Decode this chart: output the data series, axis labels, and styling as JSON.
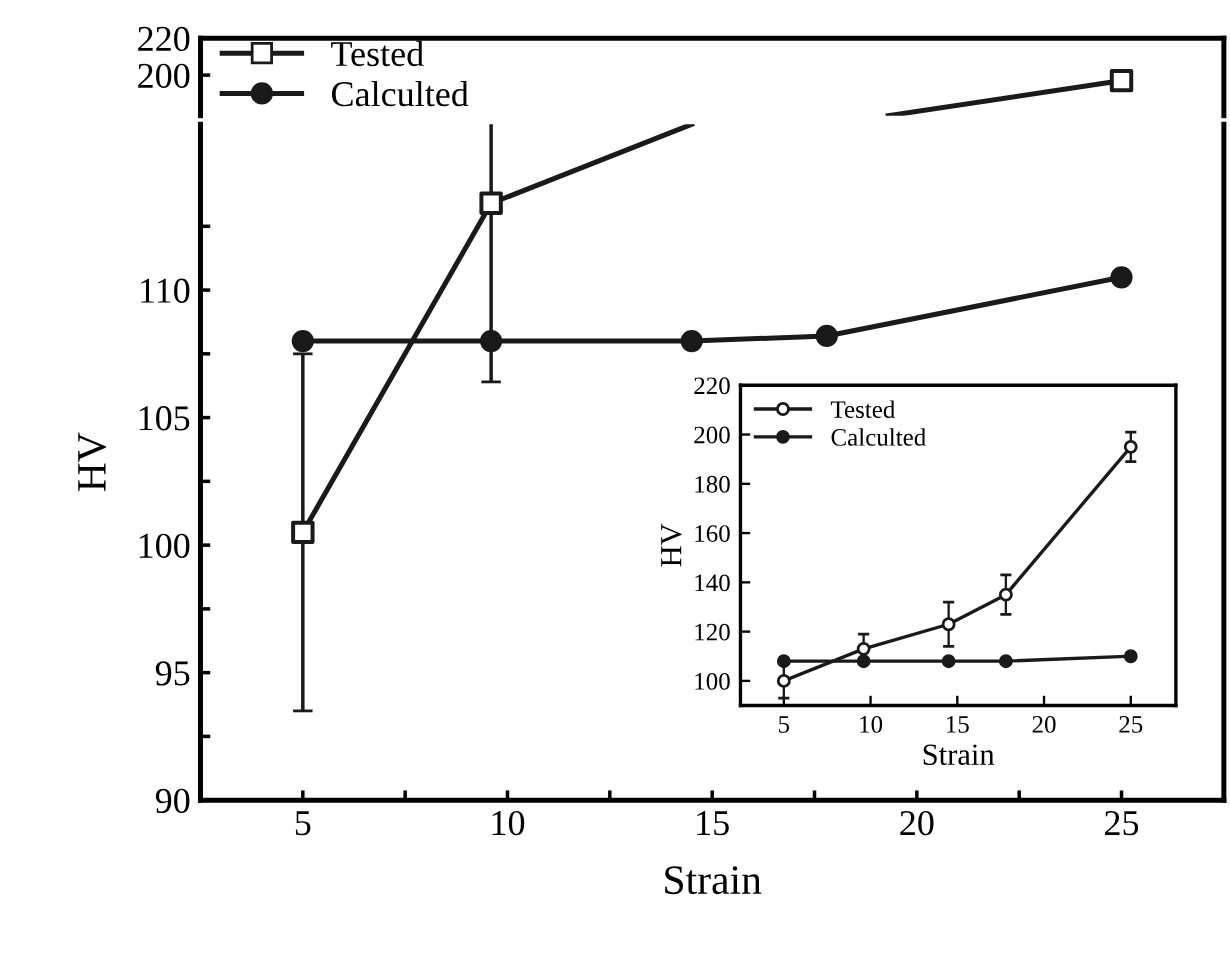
{
  "chart_data": [
    {
      "type": "line",
      "xlim": [
        2.5,
        27.5
      ],
      "ylim": [
        178,
        220
      ],
      "yticks": [
        200,
        220
      ],
      "tick_labels": "y",
      "legend": "top left",
      "line_style": "solid",
      "series": [
        {
          "color": "#1a1a1a",
          "marker": "none",
          "x": [
            19.3,
            25
          ],
          "values": [
            178,
            197
          ]
        },
        {
          "name": "Tested",
          "type": "scatter",
          "color": "#1a1a1a",
          "marker": "square",
          "x": [
            25
          ],
          "values": [
            197
          ],
          "errors": [
            2
          ]
        },
        {
          "name": "Calculted",
          "type": "scatter",
          "color": "#1a1a1a",
          "marker": "circle"
        }
      ]
    },
    {
      "type": "line",
      "xlim": [
        2.5,
        27.5
      ],
      "ylim": [
        90,
        116.5
      ],
      "xlabel": "Strain",
      "ylabel": "HV",
      "line_style": "solid",
      "xticks": [
        5,
        {
          "value": 7.5,
          "label": null
        },
        10,
        {
          "value": 12.5,
          "label": null
        },
        15,
        {
          "value": 17.5,
          "label": null
        },
        20,
        {
          "value": 22.5,
          "label": null
        },
        25
      ],
      "yticks": [
        90,
        {
          "value": 92.5,
          "label": null
        },
        95,
        {
          "value": 97.5,
          "label": null
        },
        100,
        {
          "value": 102.5,
          "label": null
        },
        105,
        {
          "value": 107.5,
          "label": null
        },
        110,
        {
          "value": 112.5,
          "label": null
        }
      ],
      "series": [
        {
          "color": "#1a1a1a",
          "marker": "none",
          "x": [
            5,
            9.6,
            14.5
          ],
          "values": [
            100.5,
            113.4,
            116.5
          ]
        },
        {
          "type": "scatter",
          "color": "#1a1a1a",
          "marker": "square",
          "x": [
            5,
            9.6
          ],
          "values": [
            100.5,
            113.4
          ],
          "errors": [
            7,
            7
          ]
        },
        {
          "color": "#1a1a1a",
          "marker": "circle",
          "x": [
            5,
            9.6,
            14.5,
            17.8,
            25
          ],
          "values": [
            108,
            108,
            108,
            108.2,
            110.5
          ]
        }
      ]
    },
    {
      "type": "line",
      "x": [
        5,
        9.6,
        14.5,
        17.8,
        25
      ],
      "xlim": [
        2.5,
        27.6
      ],
      "ylim": [
        90,
        220
      ],
      "xlabel": "Strain",
      "ylabel": "HV",
      "legend": "top left",
      "line_style": "solid",
      "xticks": [
        5,
        10,
        15,
        20,
        25
      ],
      "yticks": [
        100,
        120,
        140,
        160,
        180,
        200,
        220
      ],
      "series": [
        {
          "name": "Tested",
          "color": "#1a1a1a",
          "marker": "circle",
          "values": [
            100,
            113,
            123,
            135,
            195
          ],
          "errors": [
            7,
            6,
            9,
            8,
            6
          ]
        },
        {
          "name": "Calculted",
          "color": "#1a1a1a",
          "marker": "circle",
          "values": [
            108,
            108,
            108,
            108,
            110
          ]
        }
      ]
    }
  ]
}
